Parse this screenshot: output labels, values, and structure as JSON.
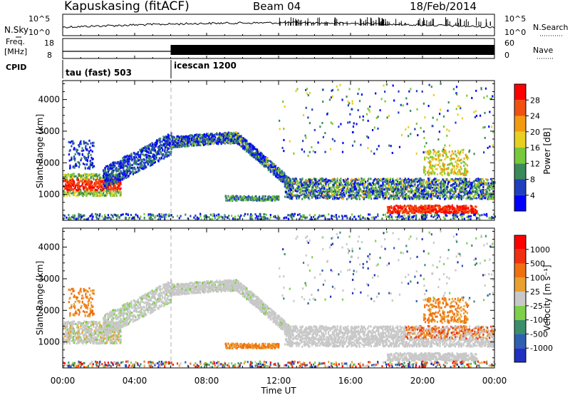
{
  "header": {
    "station": "Kapuskasing (fitACF)",
    "beam": "Beam 04",
    "date": "18/Feb/2014"
  },
  "info_panels": {
    "nsky": {
      "label": "N.Sky",
      "right_label": "N.Search",
      "left_ticks": [
        "10^5",
        "10^0"
      ],
      "right_ticks": [
        "10^5",
        "10^0"
      ]
    },
    "freq": {
      "label_line1": "Freq.",
      "label_line2": "[MHz]",
      "left_ticks": [
        "18",
        "8"
      ],
      "right_label": "Nave",
      "right_ticks": [
        "60",
        "0"
      ],
      "freq_mhz": 10,
      "nave_change_hour": 6
    },
    "cpid": {
      "label": "CPID",
      "segments": [
        {
          "name": "tau (fast) 503",
          "start_hour": 0
        },
        {
          "name": "icescan 1200",
          "start_hour": 6
        }
      ]
    }
  },
  "chart_data": [
    {
      "type": "heatmap",
      "panel": "power",
      "ylabel": "Slant Range [km]",
      "xlabel": "Time UT",
      "x_ticks": [
        "00:00",
        "04:00",
        "08:00",
        "12:00",
        "16:00",
        "20:00",
        "00:00"
      ],
      "xlim_hours": [
        0,
        24
      ],
      "y_ticks": [
        1000,
        2000,
        3000,
        4000
      ],
      "ylim": [
        180,
        4600
      ],
      "colorbar": {
        "label": "Power [dB]",
        "ticks": [
          "4",
          "8",
          "12",
          "16",
          "20",
          "24",
          "28"
        ],
        "colors": [
          "#0000ff",
          "#1f3fbf",
          "#3a8a5a",
          "#78c83c",
          "#e8d020",
          "#f49a10",
          "#f05010",
          "#ff0000"
        ]
      },
      "echo_regions": [
        {
          "label": "low-range ionospheric band",
          "t_start": 0,
          "t_end": 3.2,
          "range_center": 1250,
          "range_spread": 280,
          "level": "high"
        },
        {
          "label": "rising arc",
          "t_start": 2.5,
          "t_end": 6.0,
          "range_center": 2200,
          "range_spread": 350,
          "level": "low"
        },
        {
          "label": "broad arc",
          "t_start": 6.0,
          "t_end": 12.5,
          "range_center": 2600,
          "range_spread": 180,
          "level": "mid"
        },
        {
          "label": "post-midday band",
          "t_start": 12.5,
          "t_end": 24,
          "range_center": 1150,
          "range_spread": 200,
          "level": "mid"
        },
        {
          "label": "near-range scatter",
          "t_start": 18,
          "t_end": 23,
          "range_center": 500,
          "range_spread": 60,
          "level": "high"
        }
      ]
    },
    {
      "type": "heatmap",
      "panel": "velocity",
      "ylabel": "Slant Range [km]",
      "xlabel": "Time UT",
      "x_ticks": [
        "00:00",
        "04:00",
        "08:00",
        "12:00",
        "16:00",
        "20:00",
        "00:00"
      ],
      "xlim_hours": [
        0,
        24
      ],
      "y_ticks": [
        1000,
        2000,
        3000,
        4000
      ],
      "ylim": [
        180,
        4600
      ],
      "colorbar": {
        "label": "Velocity  [m s⁻¹]",
        "ticks": [
          "1000",
          "500",
          "100",
          "25",
          "-25",
          "-100",
          "-500",
          "-1000"
        ],
        "colors": [
          "#2030c0",
          "#2f5fb0",
          "#3a8f6a",
          "#7ed04a",
          "#c8c8c8",
          "#e8a030",
          "#f07010",
          "#f03010",
          "#ff0000"
        ]
      }
    }
  ]
}
